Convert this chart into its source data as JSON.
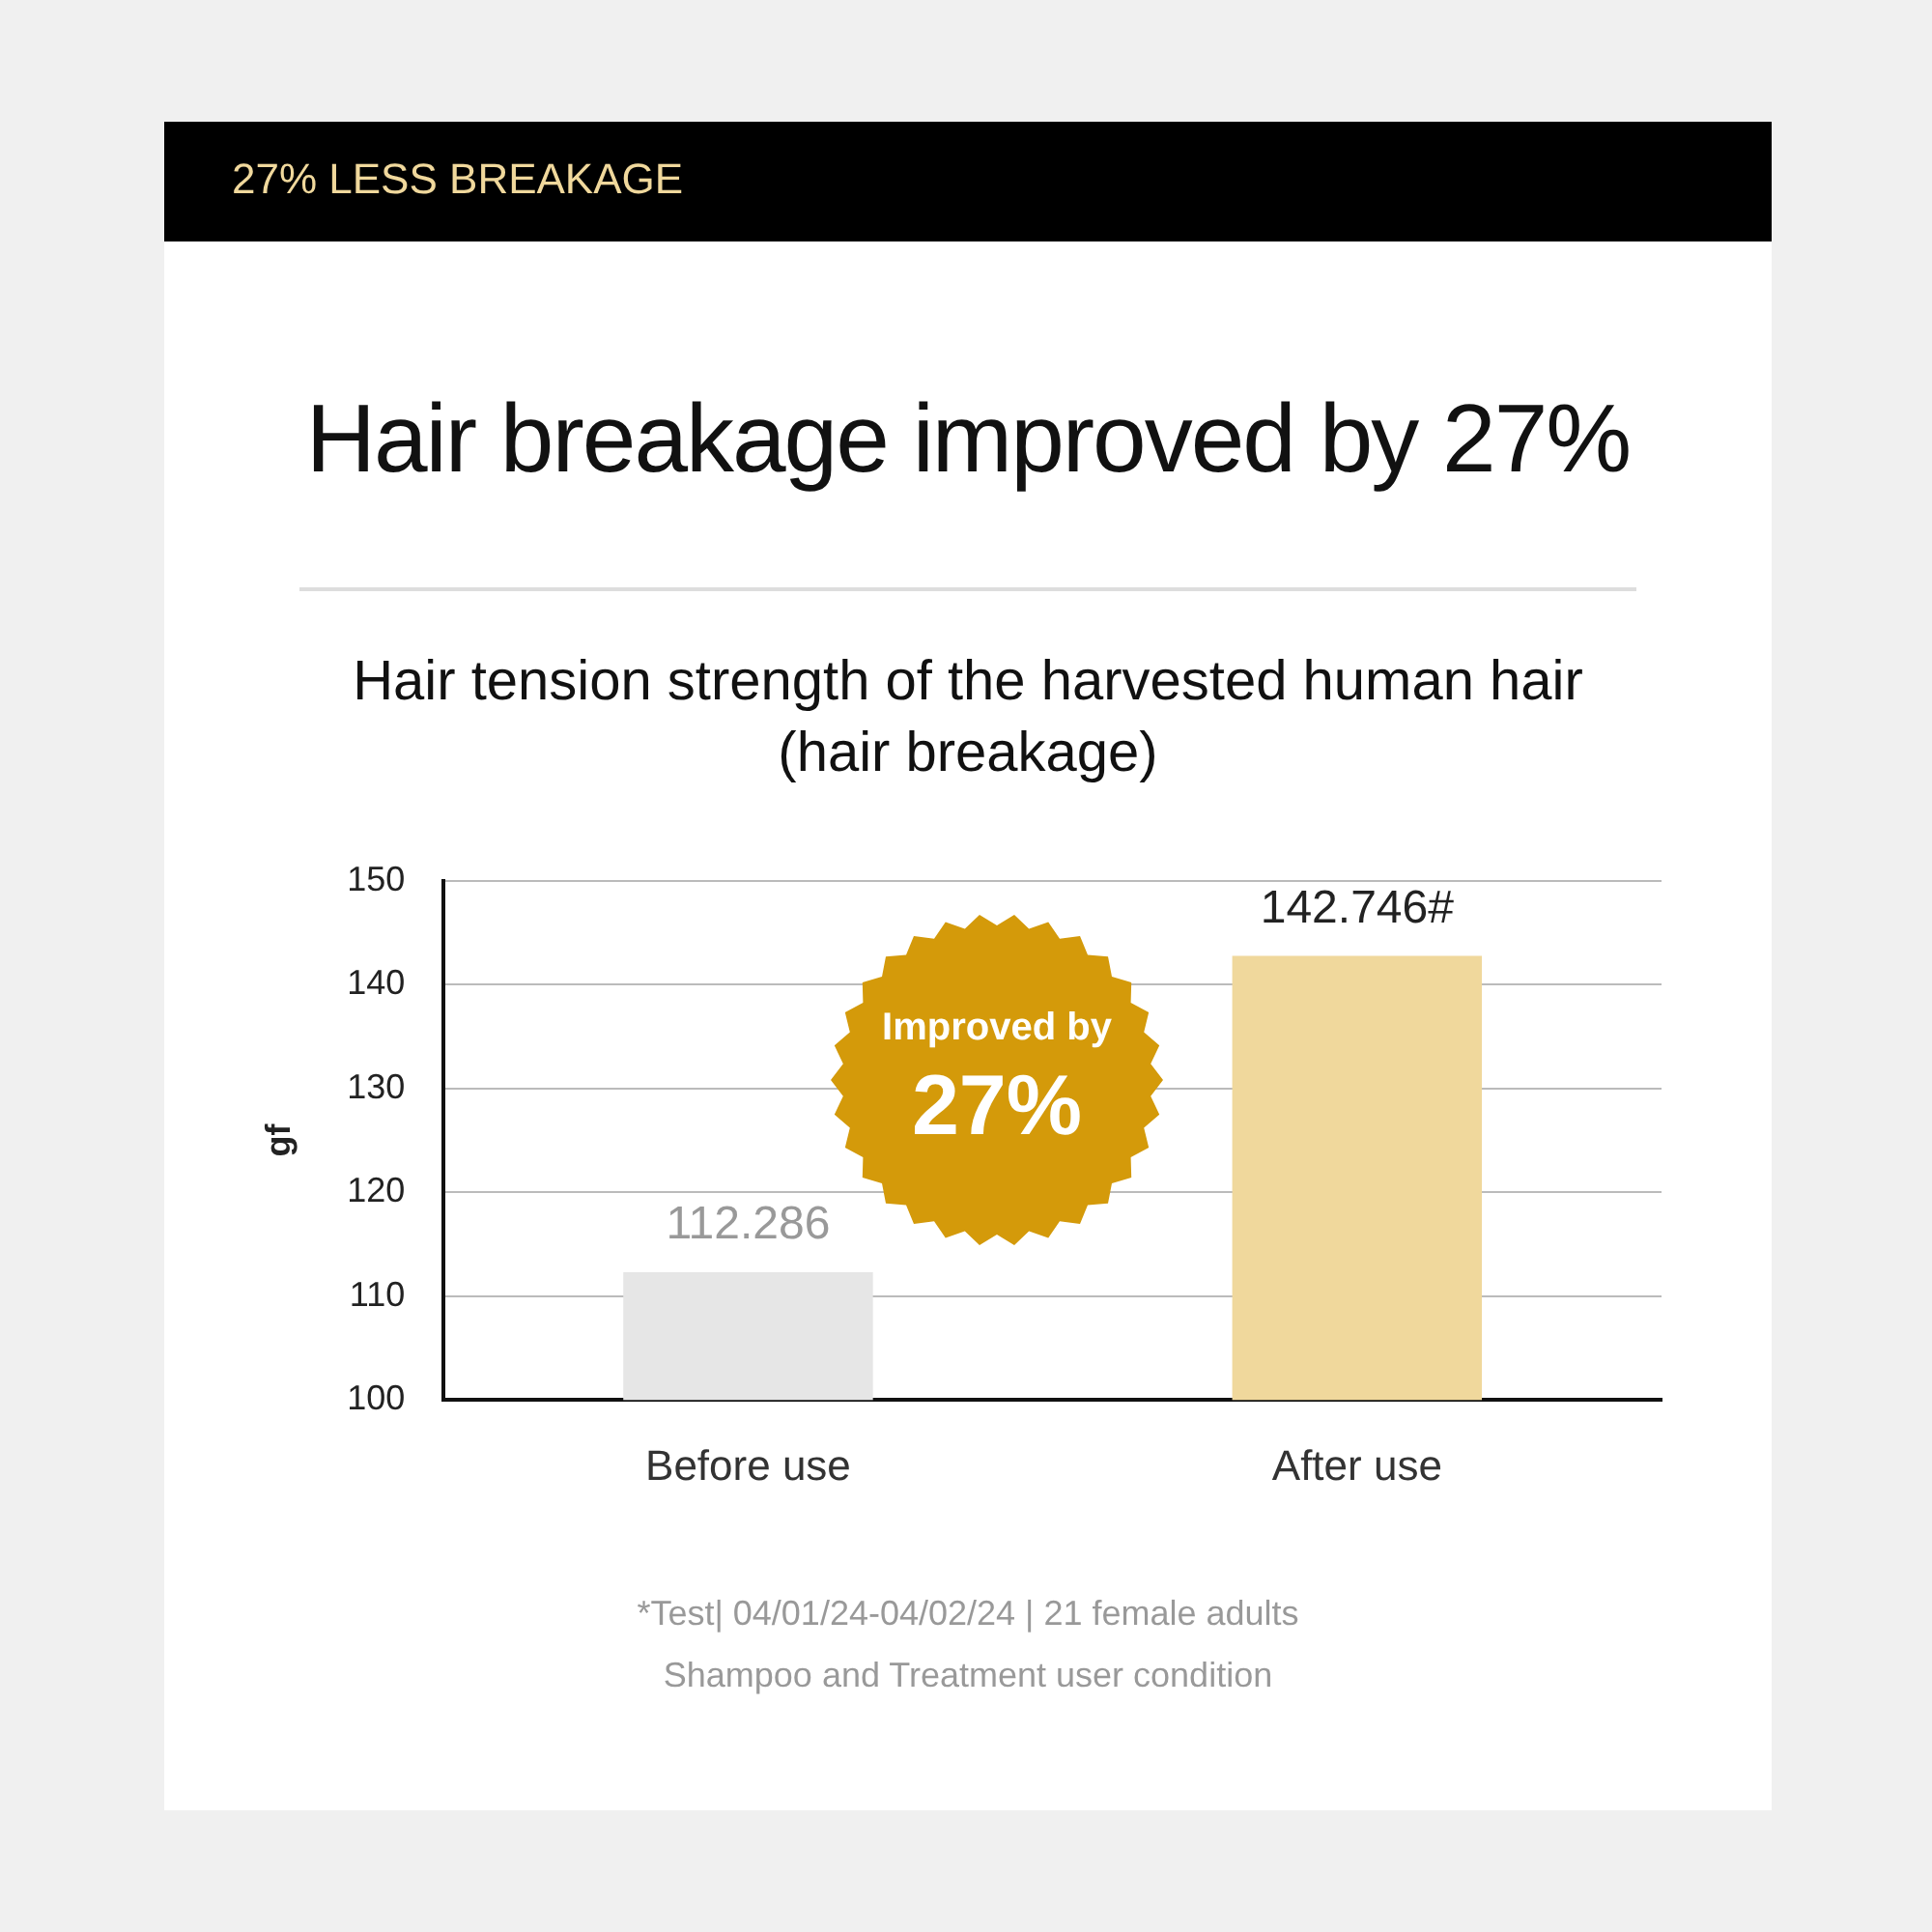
{
  "chart_data": {
    "type": "bar",
    "title": "Hair breakage improved by 27%",
    "subtitle": "Hair tension strength of the harvested human hair\n(hair breakage)",
    "ylabel": "gf",
    "categories": [
      "Before use",
      "After use"
    ],
    "values": [
      112.286,
      142.746
    ],
    "colors": [
      "#e6e6e6",
      "#f0d89c"
    ],
    "value_labels": [
      "112.286",
      "142.746#"
    ],
    "ylim": [
      100,
      150
    ],
    "yticks": [
      100,
      110,
      120,
      130,
      140,
      150
    ],
    "grid": "y",
    "annotations": [
      "27% LESS BREAKAGE",
      "Improved by",
      "27%",
      "*Test| 04/01/24-04/02/24 | 21 female adults",
      "Shampoo and Treatment user condition"
    ]
  }
}
